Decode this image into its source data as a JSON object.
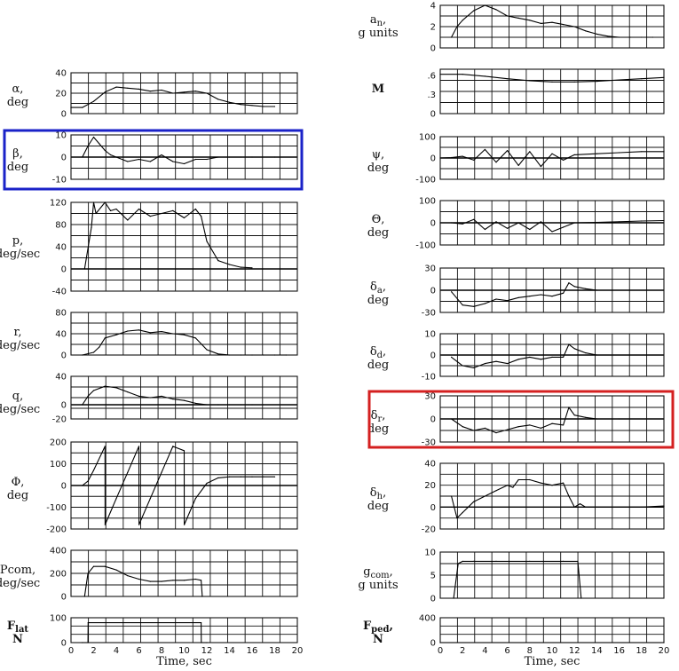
{
  "highlights": [
    {
      "panel": "beta",
      "color": "#1a22c8"
    },
    {
      "panel": "delta_r",
      "color": "#d42020"
    }
  ],
  "chart_data": [
    {
      "id": "alpha",
      "type": "line",
      "label": "α,",
      "label2": "deg",
      "ylim": [
        0,
        40
      ],
      "ticks": [
        "40",
        "20",
        "0"
      ],
      "tickvals": [
        40,
        20,
        0
      ],
      "x": [
        0,
        1,
        2,
        3,
        4,
        5,
        6,
        7,
        8,
        9,
        10,
        11,
        12,
        13,
        14,
        15,
        16,
        17,
        18
      ],
      "y": [
        6,
        6,
        12,
        21,
        26,
        25,
        24,
        22,
        23,
        20,
        21,
        22,
        20,
        14,
        11,
        9,
        8,
        7,
        7
      ]
    },
    {
      "id": "beta",
      "type": "line",
      "label": "β,",
      "label2": "deg",
      "ylim": [
        -10,
        10
      ],
      "ticks": [
        "10",
        "0",
        "-10"
      ],
      "tickvals": [
        10,
        0,
        -10
      ],
      "x": [
        1,
        1.5,
        2,
        2.5,
        3,
        3.5,
        4,
        5,
        6,
        7,
        8,
        9,
        10,
        11,
        12,
        13,
        14,
        15,
        16,
        18
      ],
      "y": [
        0,
        5,
        9,
        6,
        3,
        1,
        0,
        -2,
        -1,
        -2,
        1,
        -2,
        -3,
        -1,
        -1,
        0,
        0,
        0,
        0,
        0
      ]
    },
    {
      "id": "p",
      "type": "line",
      "label": "p,",
      "label2": "deg/sec",
      "ylim": [
        -40,
        120
      ],
      "ticks": [
        "120",
        "80",
        "40",
        "0",
        "-40"
      ],
      "tickvals": [
        120,
        80,
        40,
        0,
        -40
      ],
      "x": [
        1.2,
        1.8,
        2,
        2.2,
        3,
        3.5,
        4,
        5,
        6,
        7,
        8,
        9,
        10,
        11,
        11.5,
        12,
        13,
        14,
        15,
        16
      ],
      "y": [
        0,
        75,
        120,
        100,
        120,
        105,
        108,
        88,
        108,
        95,
        100,
        105,
        92,
        108,
        95,
        50,
        15,
        8,
        3,
        2
      ]
    },
    {
      "id": "r",
      "type": "line",
      "label": "r,",
      "label2": "deg/sec",
      "ylim": [
        0,
        80
      ],
      "ticks": [
        "80",
        "40",
        "0"
      ],
      "tickvals": [
        80,
        40,
        0
      ],
      "x": [
        1,
        2,
        2.5,
        3,
        4,
        5,
        6,
        7,
        8,
        9,
        10,
        11,
        12,
        13,
        14,
        15,
        16,
        17,
        18,
        19
      ],
      "y": [
        0,
        5,
        15,
        32,
        38,
        45,
        47,
        42,
        44,
        40,
        38,
        32,
        10,
        2,
        0,
        0,
        0,
        0,
        0,
        0
      ]
    },
    {
      "id": "q",
      "type": "line",
      "label": "q,",
      "label2": "deg/sec",
      "ylim": [
        -20,
        40
      ],
      "ticks": [
        "40",
        "0",
        "-20"
      ],
      "tickvals": [
        40,
        0,
        -20
      ],
      "x": [
        1,
        1.5,
        2,
        3,
        4,
        5,
        6,
        7,
        8,
        9,
        10,
        11,
        12,
        13,
        14,
        15,
        16,
        17
      ],
      "y": [
        0,
        12,
        20,
        26,
        24,
        18,
        12,
        10,
        12,
        8,
        6,
        2,
        0,
        0,
        0,
        0,
        0,
        0
      ]
    },
    {
      "id": "phi",
      "type": "line",
      "label": "Φ,",
      "label2": "deg",
      "ylim": [
        -200,
        200
      ],
      "ticks": [
        "200",
        "100",
        "0",
        "-100",
        "-200"
      ],
      "tickvals": [
        200,
        100,
        0,
        -100,
        -200
      ],
      "x": [
        1,
        1.5,
        2,
        3,
        3.01,
        4,
        5,
        6,
        6.01,
        7,
        8,
        9,
        10,
        10.01,
        11,
        12,
        13,
        14,
        15,
        16,
        17,
        18
      ],
      "y": [
        0,
        20,
        70,
        180,
        -180,
        -60,
        60,
        180,
        -180,
        -60,
        60,
        180,
        160,
        -180,
        -60,
        10,
        35,
        40,
        40,
        40,
        40,
        40
      ]
    },
    {
      "id": "pcom",
      "type": "line",
      "label": "Pcom,",
      "label2": "deg/sec",
      "ylim": [
        0,
        400
      ],
      "ticks": [
        "400",
        "200",
        "0"
      ],
      "tickvals": [
        400,
        200,
        0
      ],
      "x": [
        1.2,
        1.5,
        2,
        3,
        4,
        5,
        6,
        7,
        8,
        9,
        10,
        11,
        11.5,
        11.6
      ],
      "y": [
        0,
        200,
        260,
        260,
        230,
        180,
        150,
        130,
        130,
        140,
        140,
        150,
        140,
        0
      ]
    },
    {
      "id": "flat",
      "type": "line",
      "label": "F",
      "label_sub": "lat",
      "label2": "N",
      "bold": true,
      "ylim": [
        0,
        100
      ],
      "ticks": [
        "100",
        "0"
      ],
      "tickvals": [
        100,
        0
      ],
      "x": [
        1,
        1.5,
        1.51,
        11.5,
        11.51,
        12
      ],
      "y": [
        0,
        0,
        80,
        80,
        0,
        0
      ]
    },
    {
      "id": "an",
      "type": "line",
      "label": "a",
      "label_sub": "n",
      "label_tail": ",",
      "label2": "g units",
      "ylim": [
        0,
        4
      ],
      "ticks": [
        "4",
        "2",
        "0"
      ],
      "tickvals": [
        4,
        2,
        0
      ],
      "x": [
        1,
        1.5,
        2,
        3,
        4,
        5,
        6,
        7,
        8,
        9,
        10,
        11,
        12,
        13,
        14,
        15,
        16,
        17,
        18,
        19
      ],
      "y": [
        1,
        2,
        2.6,
        3.5,
        4,
        3.6,
        3,
        2.8,
        2.6,
        2.3,
        2.4,
        2.2,
        2,
        1.6,
        1.3,
        1.1,
        1,
        1,
        1,
        1
      ]
    },
    {
      "id": "M",
      "type": "line",
      "label": "M",
      "label2": "",
      "bold": true,
      "ylim": [
        0,
        0.7
      ],
      "ticks": [
        ".6",
        ".3",
        "0"
      ],
      "tickvals": [
        0.6,
        0.3,
        0
      ],
      "x": [
        0,
        2,
        4,
        6,
        8,
        10,
        12,
        14,
        16,
        18,
        20
      ],
      "y": [
        0.62,
        0.62,
        0.59,
        0.55,
        0.52,
        0.5,
        0.5,
        0.51,
        0.53,
        0.55,
        0.57
      ]
    },
    {
      "id": "psi",
      "type": "line",
      "label": "ψ,",
      "label2": "deg",
      "ylim": [
        -100,
        100
      ],
      "ticks": [
        "100",
        "0",
        "-100"
      ],
      "tickvals": [
        100,
        0,
        -100
      ],
      "x": [
        0,
        1,
        2,
        3,
        4,
        5,
        6,
        7,
        8,
        9,
        10,
        11,
        12,
        14,
        16,
        18,
        20
      ],
      "y": [
        0,
        2,
        8,
        -10,
        40,
        -20,
        35,
        -35,
        30,
        -40,
        20,
        -10,
        15,
        20,
        25,
        30,
        30
      ]
    },
    {
      "id": "theta",
      "type": "line",
      "label": "Θ,",
      "label2": "deg",
      "ylim": [
        -100,
        100
      ],
      "ticks": [
        "100",
        "0",
        "-100"
      ],
      "tickvals": [
        100,
        0,
        -100
      ],
      "x": [
        0,
        1,
        2,
        3,
        4,
        5,
        6,
        7,
        8,
        9,
        10,
        11,
        12,
        14,
        16,
        18,
        20
      ],
      "y": [
        0,
        0,
        -5,
        15,
        -30,
        5,
        -25,
        0,
        -30,
        5,
        -40,
        -20,
        0,
        2,
        5,
        8,
        10
      ]
    },
    {
      "id": "delta_a",
      "type": "line",
      "label": "δ",
      "label_sub": "a",
      "label_tail": ",",
      "label2": "deg",
      "ylim": [
        -30,
        30
      ],
      "ticks": [
        "30",
        "0",
        "-30"
      ],
      "tickvals": [
        30,
        0,
        -30
      ],
      "x": [
        1,
        2,
        3,
        4,
        5,
        6,
        7,
        8,
        9,
        10,
        11,
        11.5,
        12,
        13,
        14
      ],
      "y": [
        -2,
        -20,
        -22,
        -18,
        -12,
        -14,
        -10,
        -8,
        -6,
        -8,
        -4,
        10,
        5,
        2,
        0
      ]
    },
    {
      "id": "delta_d",
      "type": "line",
      "label": "δ",
      "label_sub": "d",
      "label_tail": ",",
      "label2": "deg",
      "ylim": [
        -10,
        10
      ],
      "ticks": [
        "10",
        "0",
        "-10"
      ],
      "tickvals": [
        10,
        0,
        -10
      ],
      "x": [
        1,
        2,
        3,
        4,
        5,
        6,
        7,
        8,
        9,
        10,
        11,
        11.5,
        12,
        13,
        14
      ],
      "y": [
        -1,
        -5,
        -6,
        -4,
        -3,
        -4,
        -2,
        -1,
        -2,
        -1,
        -1,
        5,
        3,
        1,
        0
      ]
    },
    {
      "id": "delta_r",
      "type": "line",
      "label": "δ",
      "label_sub": "r",
      "label_tail": ",",
      "label2": "deg",
      "ylim": [
        -30,
        30
      ],
      "ticks": [
        "30",
        "0",
        "-30"
      ],
      "tickvals": [
        30,
        0,
        -30
      ],
      "x": [
        1,
        2,
        3,
        4,
        5,
        6,
        7,
        8,
        9,
        10,
        11,
        11.5,
        12,
        13,
        14,
        16
      ],
      "y": [
        0,
        -10,
        -15,
        -12,
        -18,
        -14,
        -10,
        -8,
        -12,
        -6,
        -8,
        15,
        5,
        2,
        0,
        0
      ]
    },
    {
      "id": "delta_h",
      "type": "line",
      "label": "δ",
      "label_sub": "h",
      "label_tail": ",",
      "label2": "deg",
      "ylim": [
        -20,
        40
      ],
      "ticks": [
        "40",
        "20",
        "0",
        "-20"
      ],
      "tickvals": [
        40,
        20,
        0,
        -20
      ],
      "x": [
        0,
        1,
        1.5,
        2,
        3,
        4,
        5,
        6,
        6.5,
        7,
        8,
        9,
        10,
        11,
        11.5,
        12,
        12.5,
        13,
        14,
        16,
        18,
        20
      ],
      "y": [
        10,
        10,
        -10,
        -5,
        5,
        10,
        15,
        20,
        18,
        25,
        25,
        22,
        20,
        22,
        10,
        0,
        3,
        0,
        0,
        0,
        0,
        1
      ]
    },
    {
      "id": "gcom",
      "type": "line",
      "label": "g",
      "label_sub": "com",
      "label_tail": ",",
      "label2": "g units",
      "ylim": [
        0,
        10
      ],
      "ticks": [
        "10",
        "5",
        "0"
      ],
      "tickvals": [
        10,
        5,
        0
      ],
      "x": [
        1.2,
        1.6,
        2,
        3,
        5,
        8,
        11,
        12.3,
        12.6
      ],
      "y": [
        0,
        7.5,
        8,
        8,
        8,
        8,
        8,
        8,
        0
      ]
    },
    {
      "id": "fped",
      "type": "line",
      "label": "F",
      "label_sub": "ped",
      "label_tail": ",",
      "label2": "N",
      "bold": true,
      "ylim": [
        0,
        400
      ],
      "ticks": [
        "400",
        "0"
      ],
      "tickvals": [
        400,
        0
      ],
      "x": [
        0,
        20
      ],
      "y": [
        0,
        0
      ]
    }
  ],
  "x_axis": {
    "ticks": [
      "0",
      "2",
      "4",
      "6",
      "8",
      "10",
      "12",
      "14",
      "16",
      "18",
      "20"
    ],
    "label": "Time, sec"
  }
}
